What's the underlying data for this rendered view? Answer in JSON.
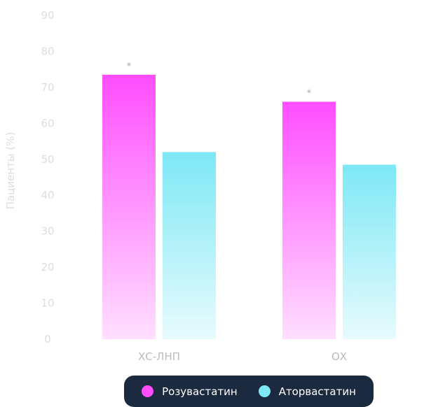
{
  "chart_data": {
    "type": "bar",
    "title": "",
    "xlabel": "",
    "ylabel": "Пациенты (%)",
    "ylim": [
      0,
      90
    ],
    "yticks": [
      0,
      10,
      20,
      30,
      40,
      50,
      60,
      70,
      80,
      90
    ],
    "categories": [
      "ХС-ЛНП",
      "ОХ"
    ],
    "series": [
      {
        "name": "Розувастатин",
        "values": [
          73.5,
          66
        ],
        "color": "#ff4dff"
      },
      {
        "name": "Аторвастатин",
        "values": [
          52,
          48.5
        ],
        "color": "#7de8f5"
      }
    ],
    "annotations": [
      {
        "text": "*",
        "category": "ХС-ЛНП",
        "series": "Розувастатин"
      },
      {
        "text": "*",
        "category": "ОХ",
        "series": "Розувастатин"
      }
    ],
    "legend": {
      "placement": "bottom-center"
    },
    "grid": false
  }
}
